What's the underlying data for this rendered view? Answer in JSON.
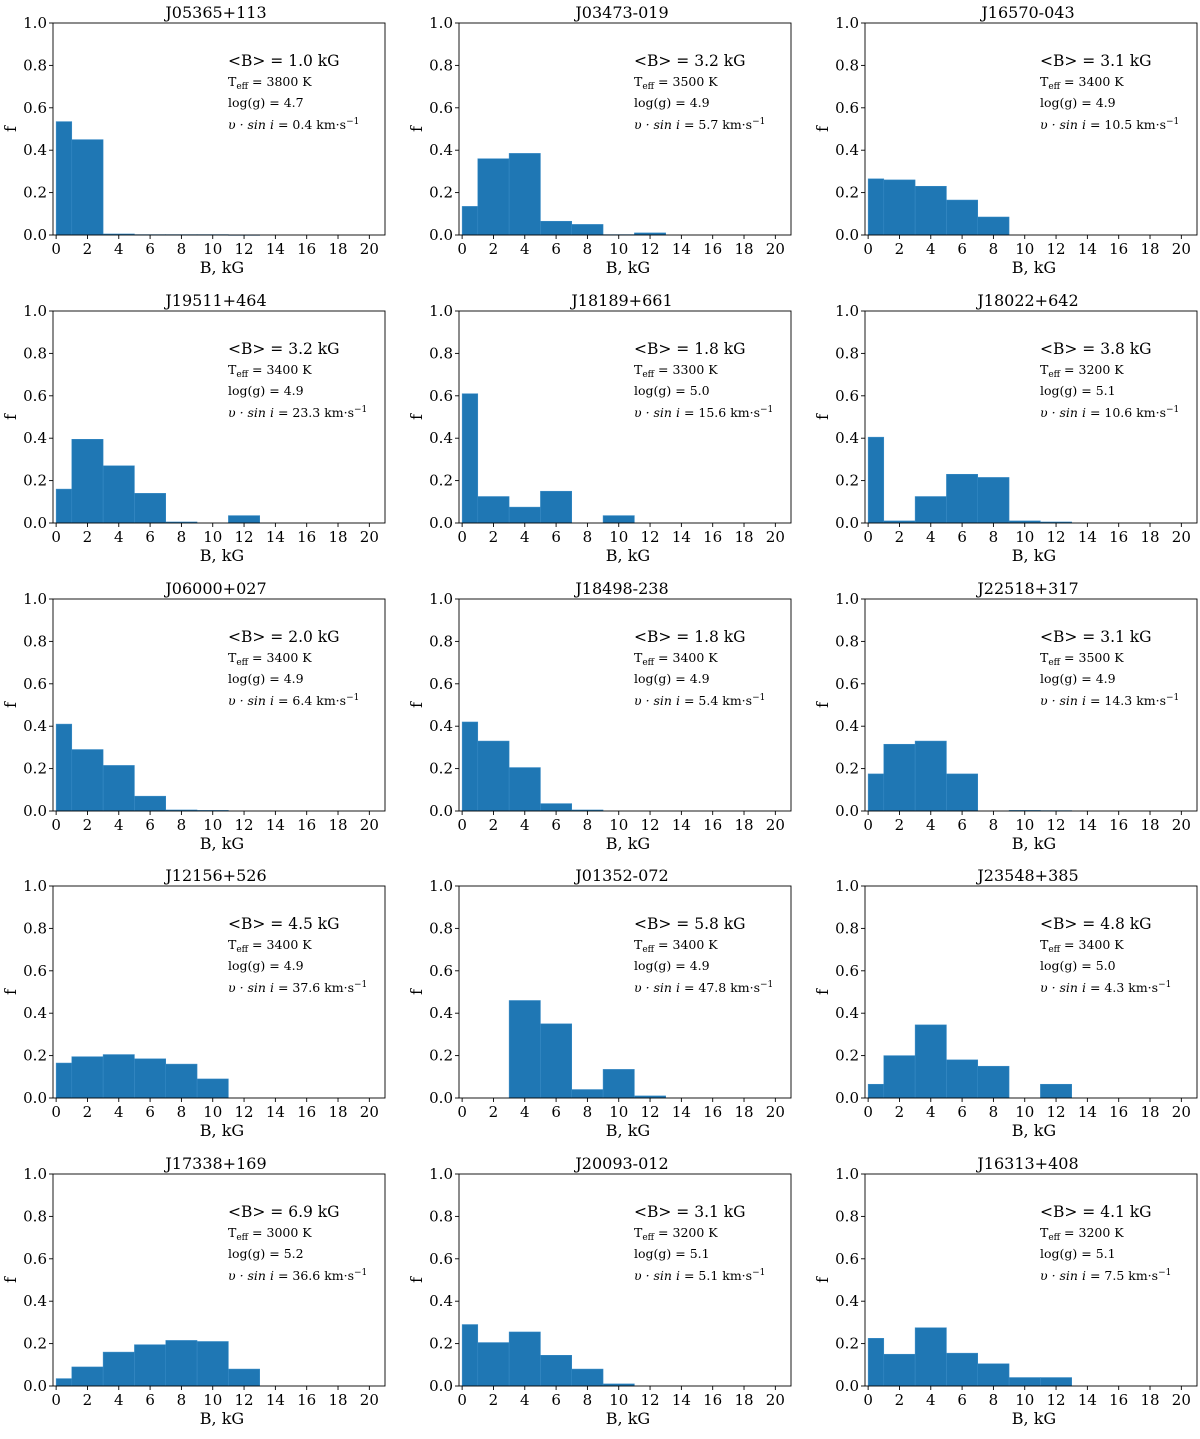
{
  "chart_data": [
    {
      "type": "bar",
      "title": "J05365+113",
      "xlabel": "B, kG",
      "ylabel": "f",
      "xlim": [
        -0.2,
        21
      ],
      "ylim": [
        0,
        1.0
      ],
      "xticks": [
        0,
        2,
        4,
        6,
        8,
        10,
        12,
        14,
        16,
        18,
        20
      ],
      "yticks": [
        0.0,
        0.2,
        0.4,
        0.6,
        0.8,
        1.0
      ],
      "bin_width": 2,
      "bins": [
        [
          0,
          1,
          0.535
        ],
        [
          1,
          3,
          0.45
        ],
        [
          3,
          5,
          0.005
        ],
        [
          5,
          7,
          0.002
        ],
        [
          7,
          9,
          0.002
        ],
        [
          9,
          11,
          0.002
        ],
        [
          11,
          13,
          0.001
        ]
      ],
      "annotations": {
        "b_avg": "<B> = 1.0 kG",
        "teff": "3800 K",
        "logg": "log(g) = 4.7",
        "vsini": "0.4"
      }
    },
    {
      "type": "bar",
      "title": "J03473-019",
      "xlabel": "B, kG",
      "ylabel": "f",
      "xlim": [
        -0.2,
        21
      ],
      "ylim": [
        0,
        1.0
      ],
      "xticks": [
        0,
        2,
        4,
        6,
        8,
        10,
        12,
        14,
        16,
        18,
        20
      ],
      "yticks": [
        0.0,
        0.2,
        0.4,
        0.6,
        0.8,
        1.0
      ],
      "bin_width": 2,
      "bins": [
        [
          0,
          1,
          0.135
        ],
        [
          1,
          3,
          0.36
        ],
        [
          3,
          5,
          0.385
        ],
        [
          5,
          7,
          0.065
        ],
        [
          7,
          9,
          0.05
        ],
        [
          9,
          11,
          0.002
        ],
        [
          11,
          13,
          0.01
        ]
      ],
      "annotations": {
        "b_avg": "<B> = 3.2 kG",
        "teff": "3500 K",
        "logg": "log(g) = 4.9",
        "vsini": "5.7"
      }
    },
    {
      "type": "bar",
      "title": "J16570-043",
      "xlabel": "B, kG",
      "ylabel": "f",
      "xlim": [
        -0.2,
        21
      ],
      "ylim": [
        0,
        1.0
      ],
      "xticks": [
        0,
        2,
        4,
        6,
        8,
        10,
        12,
        14,
        16,
        18,
        20
      ],
      "yticks": [
        0.0,
        0.2,
        0.4,
        0.6,
        0.8,
        1.0
      ],
      "bin_width": 2,
      "bins": [
        [
          0,
          1,
          0.265
        ],
        [
          1,
          3,
          0.26
        ],
        [
          3,
          5,
          0.23
        ],
        [
          5,
          7,
          0.165
        ],
        [
          7,
          9,
          0.085
        ]
      ],
      "annotations": {
        "b_avg": "<B> = 3.1 kG",
        "teff": "3400 K",
        "logg": "log(g) = 4.9",
        "vsini": "10.5"
      }
    },
    {
      "type": "bar",
      "title": "J19511+464",
      "xlabel": "B, kG",
      "ylabel": "f",
      "xlim": [
        -0.2,
        21
      ],
      "ylim": [
        0,
        1.0
      ],
      "xticks": [
        0,
        2,
        4,
        6,
        8,
        10,
        12,
        14,
        16,
        18,
        20
      ],
      "yticks": [
        0.0,
        0.2,
        0.4,
        0.6,
        0.8,
        1.0
      ],
      "bin_width": 2,
      "bins": [
        [
          0,
          1,
          0.16
        ],
        [
          1,
          3,
          0.395
        ],
        [
          3,
          5,
          0.27
        ],
        [
          5,
          7,
          0.14
        ],
        [
          7,
          9,
          0.005
        ],
        [
          11,
          13,
          0.035
        ]
      ],
      "annotations": {
        "b_avg": "<B> = 3.2 kG",
        "teff": "3400 K",
        "logg": "log(g) = 4.9",
        "vsini": "23.3"
      }
    },
    {
      "type": "bar",
      "title": "J18189+661",
      "xlabel": "B, kG",
      "ylabel": "f",
      "xlim": [
        -0.2,
        21
      ],
      "ylim": [
        0,
        1.0
      ],
      "xticks": [
        0,
        2,
        4,
        6,
        8,
        10,
        12,
        14,
        16,
        18,
        20
      ],
      "yticks": [
        0.0,
        0.2,
        0.4,
        0.6,
        0.8,
        1.0
      ],
      "bin_width": 2,
      "bins": [
        [
          0,
          1,
          0.61
        ],
        [
          1,
          3,
          0.125
        ],
        [
          3,
          5,
          0.075
        ],
        [
          5,
          7,
          0.15
        ],
        [
          9,
          11,
          0.035
        ]
      ],
      "annotations": {
        "b_avg": "<B> = 1.8 kG",
        "teff": "3300 K",
        "logg": "log(g) = 5.0",
        "vsini": "15.6"
      }
    },
    {
      "type": "bar",
      "title": "J18022+642",
      "xlabel": "B, kG",
      "ylabel": "f",
      "xlim": [
        -0.2,
        21
      ],
      "ylim": [
        0,
        1.0
      ],
      "xticks": [
        0,
        2,
        4,
        6,
        8,
        10,
        12,
        14,
        16,
        18,
        20
      ],
      "yticks": [
        0.0,
        0.2,
        0.4,
        0.6,
        0.8,
        1.0
      ],
      "bin_width": 2,
      "bins": [
        [
          0,
          1,
          0.405
        ],
        [
          1,
          3,
          0.01
        ],
        [
          3,
          5,
          0.125
        ],
        [
          5,
          7,
          0.23
        ],
        [
          7,
          9,
          0.215
        ],
        [
          9,
          11,
          0.01
        ],
        [
          11,
          13,
          0.005
        ]
      ],
      "annotations": {
        "b_avg": "<B> = 3.8 kG",
        "teff": "3200 K",
        "logg": "log(g) = 5.1",
        "vsini": "10.6"
      }
    },
    {
      "type": "bar",
      "title": "J06000+027",
      "xlabel": "B, kG",
      "ylabel": "f",
      "xlim": [
        -0.2,
        21
      ],
      "ylim": [
        0,
        1.0
      ],
      "xticks": [
        0,
        2,
        4,
        6,
        8,
        10,
        12,
        14,
        16,
        18,
        20
      ],
      "yticks": [
        0.0,
        0.2,
        0.4,
        0.6,
        0.8,
        1.0
      ],
      "bin_width": 2,
      "bins": [
        [
          0,
          1,
          0.41
        ],
        [
          1,
          3,
          0.29
        ],
        [
          3,
          5,
          0.215
        ],
        [
          5,
          7,
          0.07
        ],
        [
          7,
          9,
          0.005
        ],
        [
          9,
          11,
          0.003
        ]
      ],
      "annotations": {
        "b_avg": "<B> = 2.0 kG",
        "teff": "3400 K",
        "logg": "log(g) = 4.9",
        "vsini": "6.4"
      }
    },
    {
      "type": "bar",
      "title": "J18498-238",
      "xlabel": "B, kG",
      "ylabel": "f",
      "xlim": [
        -0.2,
        21
      ],
      "ylim": [
        0,
        1.0
      ],
      "xticks": [
        0,
        2,
        4,
        6,
        8,
        10,
        12,
        14,
        16,
        18,
        20
      ],
      "yticks": [
        0.0,
        0.2,
        0.4,
        0.6,
        0.8,
        1.0
      ],
      "bin_width": 2,
      "bins": [
        [
          0,
          1,
          0.42
        ],
        [
          1,
          3,
          0.33
        ],
        [
          3,
          5,
          0.205
        ],
        [
          5,
          7,
          0.035
        ],
        [
          7,
          9,
          0.005
        ]
      ],
      "annotations": {
        "b_avg": "<B> = 1.8 kG",
        "teff": "3400 K",
        "logg": "log(g) = 4.9",
        "vsini": "5.4"
      }
    },
    {
      "type": "bar",
      "title": "J22518+317",
      "xlabel": "B, kG",
      "ylabel": "f",
      "xlim": [
        -0.2,
        21
      ],
      "ylim": [
        0,
        1.0
      ],
      "xticks": [
        0,
        2,
        4,
        6,
        8,
        10,
        12,
        14,
        16,
        18,
        20
      ],
      "yticks": [
        0.0,
        0.2,
        0.4,
        0.6,
        0.8,
        1.0
      ],
      "bin_width": 2,
      "bins": [
        [
          0,
          1,
          0.175
        ],
        [
          1,
          3,
          0.315
        ],
        [
          3,
          5,
          0.33
        ],
        [
          5,
          7,
          0.175
        ],
        [
          9,
          11,
          0.003
        ],
        [
          11,
          13,
          0.002
        ]
      ],
      "annotations": {
        "b_avg": "<B> = 3.1 kG",
        "teff": "3500 K",
        "logg": "log(g) = 4.9",
        "vsini": "14.3"
      }
    },
    {
      "type": "bar",
      "title": "J12156+526",
      "xlabel": "B, kG",
      "ylabel": "f",
      "xlim": [
        -0.2,
        21
      ],
      "ylim": [
        0,
        1.0
      ],
      "xticks": [
        0,
        2,
        4,
        6,
        8,
        10,
        12,
        14,
        16,
        18,
        20
      ],
      "yticks": [
        0.0,
        0.2,
        0.4,
        0.6,
        0.8,
        1.0
      ],
      "bin_width": 2,
      "bins": [
        [
          0,
          1,
          0.165
        ],
        [
          1,
          3,
          0.195
        ],
        [
          3,
          5,
          0.205
        ],
        [
          5,
          7,
          0.185
        ],
        [
          7,
          9,
          0.16
        ],
        [
          9,
          11,
          0.09
        ]
      ],
      "annotations": {
        "b_avg": "<B> = 4.5 kG",
        "teff": "3400 K",
        "logg": "log(g) = 4.9",
        "vsini": "37.6"
      }
    },
    {
      "type": "bar",
      "title": "J01352-072",
      "xlabel": "B, kG",
      "ylabel": "f",
      "xlim": [
        -0.2,
        21
      ],
      "ylim": [
        0,
        1.0
      ],
      "xticks": [
        0,
        2,
        4,
        6,
        8,
        10,
        12,
        14,
        16,
        18,
        20
      ],
      "yticks": [
        0.0,
        0.2,
        0.4,
        0.6,
        0.8,
        1.0
      ],
      "bin_width": 2,
      "bins": [
        [
          3,
          5,
          0.46
        ],
        [
          5,
          7,
          0.35
        ],
        [
          7,
          9,
          0.04
        ],
        [
          9,
          11,
          0.135
        ],
        [
          11,
          13,
          0.01
        ]
      ],
      "annotations": {
        "b_avg": "<B> = 5.8 kG",
        "teff": "3400 K",
        "logg": "log(g) = 4.9",
        "vsini": "47.8"
      }
    },
    {
      "type": "bar",
      "title": "J23548+385",
      "xlabel": "B, kG",
      "ylabel": "f",
      "xlim": [
        -0.2,
        21
      ],
      "ylim": [
        0,
        1.0
      ],
      "xticks": [
        0,
        2,
        4,
        6,
        8,
        10,
        12,
        14,
        16,
        18,
        20
      ],
      "yticks": [
        0.0,
        0.2,
        0.4,
        0.6,
        0.8,
        1.0
      ],
      "bin_width": 2,
      "bins": [
        [
          0,
          1,
          0.065
        ],
        [
          1,
          3,
          0.2
        ],
        [
          3,
          5,
          0.345
        ],
        [
          5,
          7,
          0.18
        ],
        [
          7,
          9,
          0.15
        ],
        [
          11,
          13,
          0.065
        ]
      ],
      "annotations": {
        "b_avg": "<B> = 4.8 kG",
        "teff": "3400 K",
        "logg": "log(g) = 5.0",
        "vsini": "4.3"
      }
    },
    {
      "type": "bar",
      "title": "J17338+169",
      "xlabel": "B, kG",
      "ylabel": "f",
      "xlim": [
        -0.2,
        21
      ],
      "ylim": [
        0,
        1.0
      ],
      "xticks": [
        0,
        2,
        4,
        6,
        8,
        10,
        12,
        14,
        16,
        18,
        20
      ],
      "yticks": [
        0.0,
        0.2,
        0.4,
        0.6,
        0.8,
        1.0
      ],
      "bin_width": 2,
      "bins": [
        [
          0,
          1,
          0.035
        ],
        [
          1,
          3,
          0.09
        ],
        [
          3,
          5,
          0.16
        ],
        [
          5,
          7,
          0.195
        ],
        [
          7,
          9,
          0.215
        ],
        [
          9,
          11,
          0.21
        ],
        [
          11,
          13,
          0.08
        ]
      ],
      "annotations": {
        "b_avg": "<B> = 6.9 kG",
        "teff": "3000 K",
        "logg": "log(g) = 5.2",
        "vsini": "36.6"
      }
    },
    {
      "type": "bar",
      "title": "J20093-012",
      "xlabel": "B, kG",
      "ylabel": "f",
      "xlim": [
        -0.2,
        21
      ],
      "ylim": [
        0,
        1.0
      ],
      "xticks": [
        0,
        2,
        4,
        6,
        8,
        10,
        12,
        14,
        16,
        18,
        20
      ],
      "yticks": [
        0.0,
        0.2,
        0.4,
        0.6,
        0.8,
        1.0
      ],
      "bin_width": 2,
      "bins": [
        [
          0,
          1,
          0.29
        ],
        [
          1,
          3,
          0.205
        ],
        [
          3,
          5,
          0.255
        ],
        [
          5,
          7,
          0.145
        ],
        [
          7,
          9,
          0.08
        ],
        [
          9,
          11,
          0.01
        ]
      ],
      "annotations": {
        "b_avg": "<B> = 3.1 kG",
        "teff": "3200 K",
        "logg": "log(g) = 5.1",
        "vsini": "5.1"
      }
    },
    {
      "type": "bar",
      "title": "J16313+408",
      "xlabel": "B, kG",
      "ylabel": "f",
      "xlim": [
        -0.2,
        21
      ],
      "ylim": [
        0,
        1.0
      ],
      "xticks": [
        0,
        2,
        4,
        6,
        8,
        10,
        12,
        14,
        16,
        18,
        20
      ],
      "yticks": [
        0.0,
        0.2,
        0.4,
        0.6,
        0.8,
        1.0
      ],
      "bin_width": 2,
      "bins": [
        [
          0,
          1,
          0.225
        ],
        [
          1,
          3,
          0.15
        ],
        [
          3,
          5,
          0.275
        ],
        [
          5,
          7,
          0.155
        ],
        [
          7,
          9,
          0.105
        ],
        [
          9,
          11,
          0.04
        ],
        [
          11,
          13,
          0.04
        ]
      ],
      "annotations": {
        "b_avg": "<B> = 4.1 kG",
        "teff": "3200 K",
        "logg": "log(g) = 5.1",
        "vsini": "7.5"
      }
    }
  ],
  "labels": {
    "teff_prefix": "T",
    "teff_subscript": "eff",
    "vsini_symbol": "υ · sin",
    "vsini_i": "i",
    "vsini_unit": "km·s",
    "vsini_exp": "−1",
    "equals": " = "
  },
  "colors": {
    "bar": "#1f77b4"
  }
}
